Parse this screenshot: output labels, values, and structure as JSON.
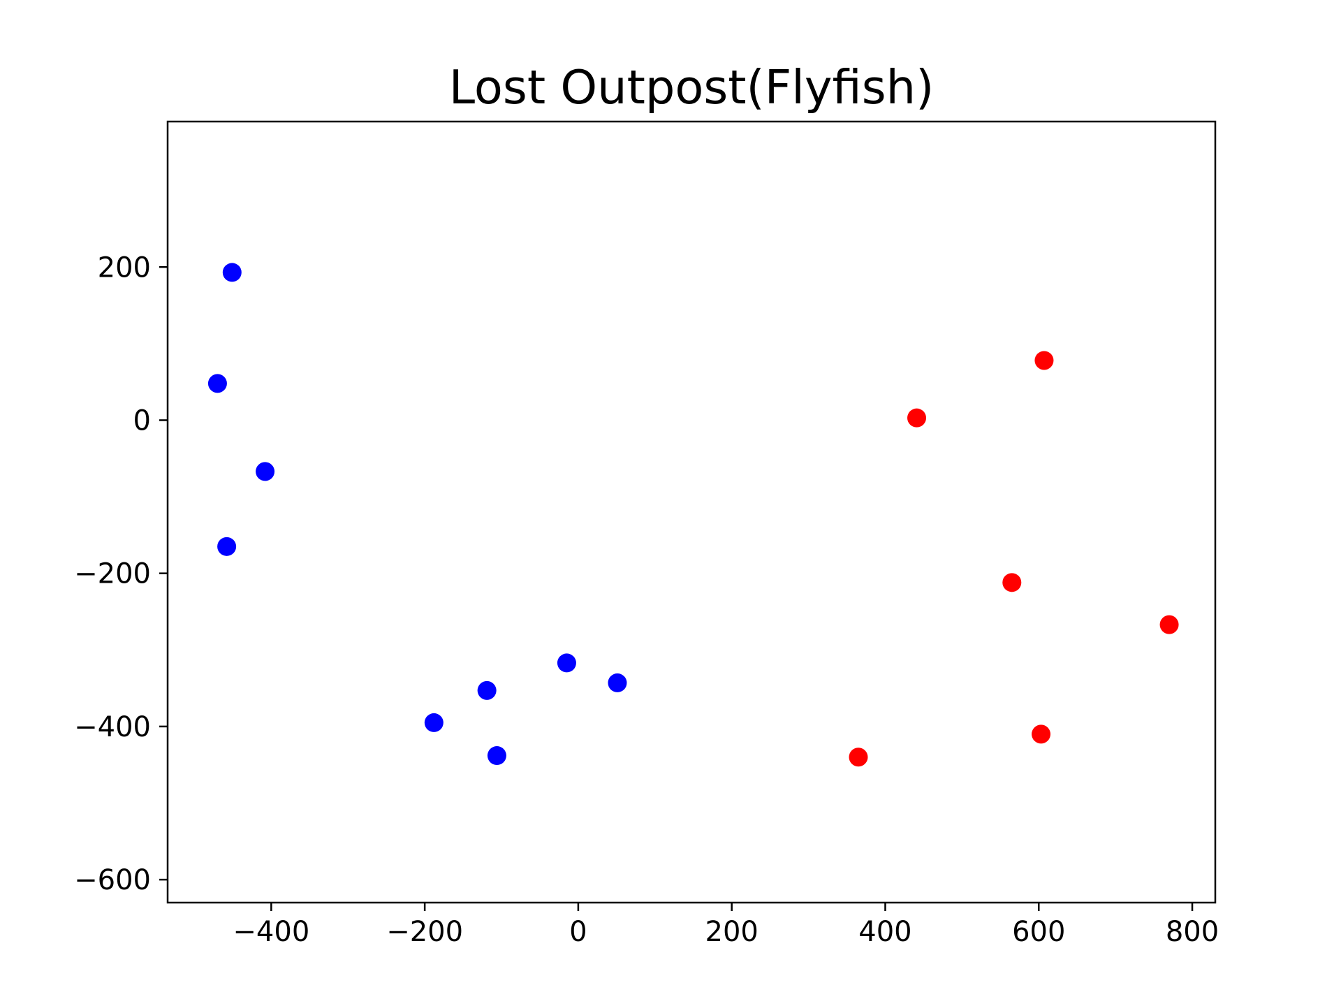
{
  "chart_data": {
    "type": "scatter",
    "title": "Lost Outpost(Flyfish)",
    "xlabel": "",
    "ylabel": "",
    "xlim": [
      -535,
      830
    ],
    "ylim": [
      -630,
      390
    ],
    "grid": false,
    "x_ticks": [
      -400,
      -200,
      0,
      200,
      400,
      600,
      800
    ],
    "y_ticks": [
      -600,
      -400,
      -200,
      0,
      200
    ],
    "x_tick_labels": [
      "−400",
      "−200",
      "0",
      "200",
      "400",
      "600",
      "800"
    ],
    "y_tick_labels": [
      "−600",
      "−400",
      "−200",
      "0",
      "200"
    ],
    "series": [
      {
        "color": "#0000ff",
        "points": [
          {
            "x": -451,
            "y": 193
          },
          {
            "x": -470,
            "y": 48
          },
          {
            "x": -408,
            "y": -67
          },
          {
            "x": -458,
            "y": -165
          },
          {
            "x": -188,
            "y": -395
          },
          {
            "x": -119,
            "y": -353
          },
          {
            "x": -106,
            "y": -438
          },
          {
            "x": -15,
            "y": -317
          },
          {
            "x": 51,
            "y": -343
          }
        ]
      },
      {
        "color": "#ff0000",
        "points": [
          {
            "x": 441,
            "y": 3
          },
          {
            "x": 607,
            "y": 78
          },
          {
            "x": 565,
            "y": -212
          },
          {
            "x": 770,
            "y": -267
          },
          {
            "x": 603,
            "y": -410
          },
          {
            "x": 365,
            "y": -440
          }
        ]
      }
    ]
  }
}
